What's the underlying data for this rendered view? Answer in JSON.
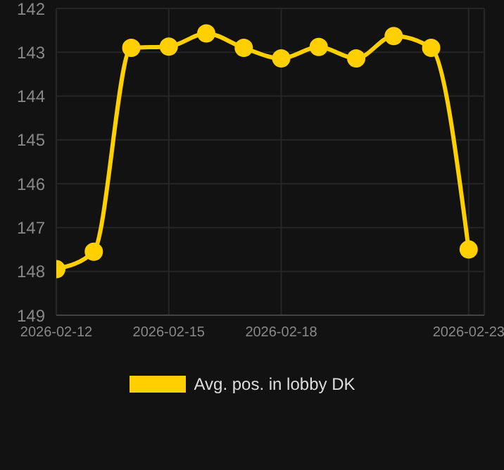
{
  "chart_data": {
    "type": "line",
    "x": [
      "2026-02-12",
      "2026-02-13",
      "2026-02-14",
      "2026-02-15",
      "2026-02-16",
      "2026-02-17",
      "2026-02-18",
      "2026-02-19",
      "2026-02-20",
      "2026-02-21",
      "2026-02-22",
      "2026-02-23"
    ],
    "series": [
      {
        "name": "Avg. pos. in lobby DK",
        "color": "#ffd000",
        "values": [
          147.95,
          147.55,
          142.9,
          142.87,
          142.57,
          142.9,
          143.14,
          142.88,
          143.14,
          142.63,
          142.9,
          147.5
        ]
      }
    ],
    "xlim": [
      "2026-02-12",
      "2026-02-23T10:00"
    ],
    "xticks": [
      "2026-02-12",
      "2026-02-15",
      "2026-02-18",
      "2026-02-23"
    ],
    "ylim": [
      149,
      142
    ],
    "yticks": [
      142,
      143,
      144,
      145,
      146,
      147,
      148,
      149
    ],
    "grid": true,
    "legend": "bottom",
    "marker": "circle",
    "line_style": "solid"
  }
}
